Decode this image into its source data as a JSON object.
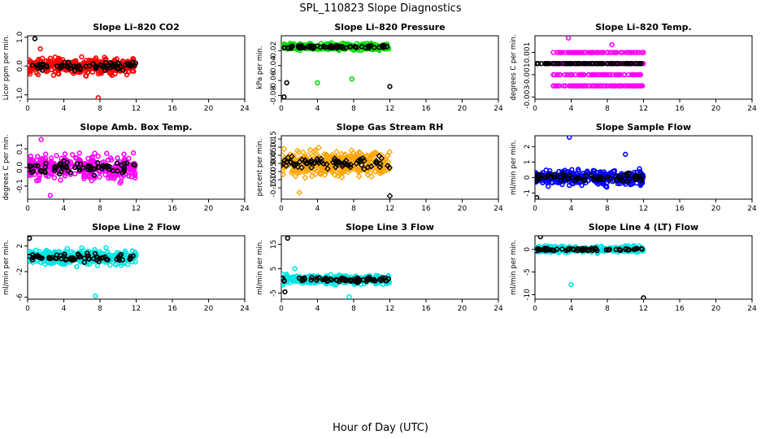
{
  "figure": {
    "title": "SPL_110823  Slope Diagnostics",
    "xlabel": "Hour of Day (UTC)"
  },
  "chart_data": [
    {
      "type": "scatter",
      "title": "Slope Li–820 CO2",
      "ylabel": "Licor ppm per min.",
      "color": "#ff0000",
      "marker": "circle",
      "xlim": [
        0,
        24
      ],
      "xticks": [
        0,
        4,
        8,
        12,
        16,
        20,
        24
      ],
      "ylim": [
        -1.15,
        1.05
      ],
      "yticks": [
        -1.0,
        0.0,
        1.0
      ],
      "ytick_labels": [
        "-1.0",
        "0.0",
        "1.0"
      ],
      "x_range": [
        0,
        12
      ],
      "spread": 0.25,
      "outliers": [
        [
          0.8,
          0.95
        ],
        [
          1.4,
          0.6
        ],
        [
          7.8,
          -1.1
        ]
      ]
    },
    {
      "type": "scatter",
      "title": "Slope Li–820 Pressure",
      "ylabel": "kPa per min.",
      "color": "#00dd00",
      "marker": "circle",
      "xlim": [
        0,
        24
      ],
      "xticks": [
        0,
        4,
        8,
        12,
        16,
        20,
        24
      ],
      "ylim": [
        -0.085,
        0.0
      ],
      "yticks": [
        -0.08,
        -0.06,
        -0.04,
        -0.02
      ],
      "ytick_labels": [
        "-0.08",
        "-0.06",
        "-0.04",
        "-0.02"
      ],
      "x_range": [
        0,
        12
      ],
      "spread": 0.004,
      "outliers": [
        [
          0.3,
          -0.082
        ],
        [
          4.0,
          -0.063
        ],
        [
          7.8,
          -0.058
        ],
        [
          12.0,
          -0.068
        ],
        [
          0.6,
          -0.063
        ]
      ]
    },
    {
      "type": "scatter",
      "title": "Slope Li–820 Temp.",
      "ylabel": "degrees C per min.",
      "color": "#ff00ff",
      "marker": "circle",
      "xlim": [
        0,
        24
      ],
      "xticks": [
        0,
        4,
        8,
        12,
        16,
        20,
        24
      ],
      "ylim": [
        -0.0032,
        0.0025
      ],
      "yticks": [
        -0.003,
        -0.001,
        0.001
      ],
      "ytick_labels": [
        "-0.003",
        "-0.001",
        "0.001"
      ],
      "x_range": [
        2,
        12
      ],
      "spread": 0.001,
      "outliers": [
        [
          3.7,
          0.0023
        ],
        [
          8.5,
          0.0017
        ]
      ]
    },
    {
      "type": "scatter",
      "title": "Slope Amb. Box Temp.",
      "ylabel": "degrees C per min.",
      "color": "#ff00ff",
      "marker": "circle",
      "xlim": [
        0,
        24
      ],
      "xticks": [
        0,
        4,
        8,
        12,
        16,
        20,
        24
      ],
      "ylim": [
        -0.17,
        0.17
      ],
      "yticks": [
        -0.1,
        0.0,
        0.1
      ],
      "ytick_labels": [
        "-0.1",
        "0.0",
        "0.1"
      ],
      "x_range": [
        0,
        12
      ],
      "spread": 0.06,
      "outliers": [
        [
          1.5,
          0.15
        ],
        [
          2.5,
          -0.15
        ]
      ]
    },
    {
      "type": "scatter",
      "title": "Slope Gas Stream RH",
      "ylabel": "percent per min.",
      "color": "#ffa500",
      "marker": "diamond",
      "xlim": [
        0,
        24
      ],
      "xticks": [
        0,
        4,
        8,
        12,
        16,
        20,
        24
      ],
      "ylim": [
        -0.22,
        0.17
      ],
      "yticks": [
        -0.15,
        -0.05,
        0.05,
        0.15
      ],
      "ytick_labels": [
        "-0.15",
        "-0.05",
        "0.05",
        "0.15"
      ],
      "yticks_minor": [
        -0.1,
        0.0,
        0.1
      ],
      "ytick_labels_minor": [
        "-0.10",
        "0.00",
        "0.10"
      ],
      "x_range": [
        0,
        12
      ],
      "spread": 0.07,
      "outliers": [
        [
          12.0,
          -0.2
        ],
        [
          2.0,
          -0.18
        ]
      ]
    },
    {
      "type": "scatter",
      "title": "Slope Sample Flow",
      "ylabel": "ml/min per min.",
      "color": "#0000ff",
      "marker": "circle",
      "xlim": [
        0,
        24
      ],
      "xticks": [
        0,
        4,
        8,
        12,
        16,
        20,
        24
      ],
      "ylim": [
        -1.4,
        2.7
      ],
      "yticks": [
        -1,
        0,
        1,
        2
      ],
      "ytick_labels": [
        "-1",
        "0",
        "1",
        "2"
      ],
      "x_range": [
        0,
        12
      ],
      "spread": 0.45,
      "outliers": [
        [
          3.8,
          2.6
        ],
        [
          10.0,
          1.5
        ],
        [
          0.2,
          -1.3
        ]
      ]
    },
    {
      "type": "scatter",
      "title": "Slope Line 2 Flow",
      "ylabel": "ml/min per min.",
      "color": "#00e5e5",
      "marker": "circle",
      "xlim": [
        0,
        24
      ],
      "xticks": [
        0,
        4,
        8,
        12,
        16,
        20,
        24
      ],
      "ylim": [
        -6.3,
        3.6
      ],
      "yticks": [
        -6,
        -2,
        2
      ],
      "ytick_labels": [
        "-6",
        "-2",
        "2"
      ],
      "x_range": [
        0,
        12
      ],
      "spread": 1.1,
      "outliers": [
        [
          0.2,
          3.2
        ],
        [
          7.5,
          -5.8
        ]
      ]
    },
    {
      "type": "scatter",
      "title": "Slope Line 3 Flow",
      "ylabel": "ml/min per min.",
      "color": "#00e5e5",
      "marker": "circle",
      "xlim": [
        0,
        24
      ],
      "xticks": [
        0,
        4,
        8,
        12,
        16,
        20,
        24
      ],
      "ylim": [
        -7.5,
        18.5
      ],
      "yticks": [
        -5,
        5,
        15
      ],
      "ytick_labels": [
        "-5",
        "5",
        "15"
      ],
      "x_range": [
        0,
        12
      ],
      "spread": 1.6,
      "outliers": [
        [
          0.7,
          17.5
        ],
        [
          1.5,
          5.0
        ],
        [
          7.5,
          -6.5
        ],
        [
          0.4,
          -4.5
        ]
      ]
    },
    {
      "type": "scatter",
      "title": "Slope Line 4 (LT) Flow",
      "ylabel": "ml/min per min.",
      "color": "#00e5e5",
      "marker": "circle",
      "xlim": [
        0,
        24
      ],
      "xticks": [
        0,
        4,
        8,
        12,
        16,
        20,
        24
      ],
      "ylim": [
        -11,
        3
      ],
      "yticks": [
        -10,
        -5,
        0
      ],
      "ytick_labels": [
        "-10",
        "-5",
        "0"
      ],
      "x_range": [
        0,
        12
      ],
      "spread": 0.6,
      "outliers": [
        [
          0.6,
          2.8
        ],
        [
          4.0,
          -7.8
        ],
        [
          12.0,
          -10.7
        ]
      ]
    }
  ]
}
